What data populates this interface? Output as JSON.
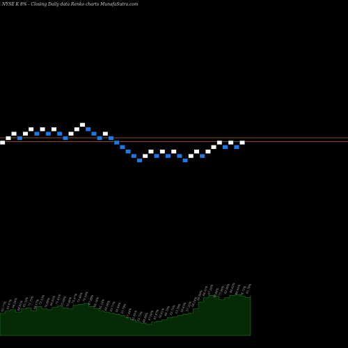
{
  "header": {
    "title": "NYSE K 8% - Closing Daily data  Renko  charts MunafaSutra.com"
  },
  "colors": {
    "background": "#000000",
    "up_brick": "#ffffff",
    "down_brick": "#1e78e6",
    "brick_border": "#000000",
    "reference_line": "#b5651d",
    "volume_fill": "#062a06",
    "volume_outline": "#2fa02f"
  },
  "chart_data": {
    "type": "renko",
    "y_scale": "relative",
    "reference_lines": 2,
    "brick_sequence": [
      "up",
      "up",
      "up",
      "down",
      "up",
      "up",
      "down",
      "up",
      "down",
      "up",
      "down",
      "down",
      "up",
      "up",
      "up",
      "down",
      "down",
      "down",
      "up",
      "down",
      "down",
      "down",
      "down",
      "down",
      "down",
      "up",
      "up",
      "down",
      "up",
      "down",
      "up",
      "down",
      "down",
      "up",
      "up",
      "down",
      "up",
      "up",
      "up",
      "down",
      "up",
      "down",
      "up"
    ],
    "volume_profile": [
      0.5,
      0.55,
      0.58,
      0.52,
      0.6,
      0.62,
      0.55,
      0.65,
      0.6,
      0.58,
      0.63,
      0.66,
      0.62,
      0.6,
      0.68,
      0.7,
      0.72,
      0.65,
      0.6,
      0.55,
      0.52,
      0.5,
      0.48,
      0.45,
      0.4,
      0.35,
      0.3,
      0.28,
      0.25,
      0.3,
      0.32,
      0.35,
      0.4,
      0.42,
      0.45,
      0.48,
      0.5,
      0.6,
      0.75,
      0.85,
      0.9,
      0.88,
      0.8,
      0.85,
      0.9,
      0.92,
      0.88,
      0.85,
      0.9
    ],
    "volume_labels": [
      "62.77%",
      "63.97%",
      "64.26%",
      "66.91%",
      "65.33%",
      "71.75%",
      "68.17%",
      "72.53%",
      "70.89%",
      "69.83%",
      "71.45%",
      "73.08%",
      "70.86%",
      "75.47%",
      "73.46%",
      "70.19%",
      "67.99%",
      "68.58%",
      "65.18%",
      "60.68%",
      "63.77%",
      "58.84%",
      "55.79%",
      "57.84%",
      "51.85%",
      "53.73%",
      "49.89%",
      "47.60%",
      "43.47%",
      "50.81%",
      "48.70%",
      "52.75%",
      "53.78%",
      "56.45%",
      "57.32%",
      "59.14%",
      "60.80%",
      "64.51%",
      "67.20%",
      "70.88%",
      "77.94%",
      "82.96%",
      "84.62%",
      "80.95%",
      "78.72%",
      "81.78%"
    ]
  }
}
